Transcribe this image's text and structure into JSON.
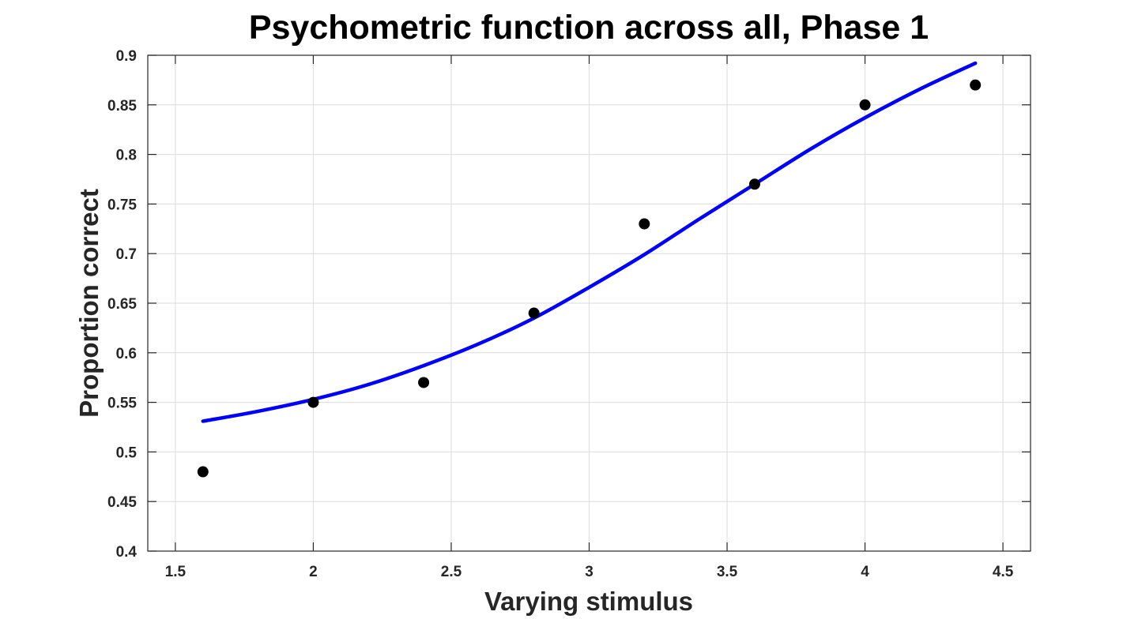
{
  "chart_data": {
    "type": "scatter",
    "title": "Psychometric function across all, Phase 1",
    "xlabel": "Varying stimulus",
    "ylabel": "Proportion correct",
    "xlim": [
      1.4,
      4.6
    ],
    "ylim": [
      0.4,
      0.9
    ],
    "x_ticks": [
      1.5,
      2,
      2.5,
      3,
      3.5,
      4,
      4.5
    ],
    "x_tick_labels": [
      "1.5",
      "2",
      "2.5",
      "3",
      "3.5",
      "4",
      "4.5"
    ],
    "y_ticks": [
      0.4,
      0.45,
      0.5,
      0.55,
      0.6,
      0.65,
      0.7,
      0.75,
      0.8,
      0.85,
      0.9
    ],
    "y_tick_labels": [
      "0.4",
      "0.45",
      "0.5",
      "0.55",
      "0.6",
      "0.65",
      "0.7",
      "0.75",
      "0.8",
      "0.85",
      "0.9"
    ],
    "grid": true,
    "series": [
      {
        "type": "scatter",
        "color": "#000000",
        "x": [
          1.6,
          2.0,
          2.4,
          2.8,
          3.2,
          3.6,
          4.0,
          4.4
        ],
        "y": [
          0.48,
          0.55,
          0.57,
          0.64,
          0.73,
          0.77,
          0.85,
          0.87
        ]
      },
      {
        "type": "line",
        "color": "#0000ff",
        "x": [
          1.6,
          1.8,
          2.0,
          2.2,
          2.4,
          2.6,
          2.8,
          3.0,
          3.2,
          3.4,
          3.6,
          3.8,
          4.0,
          4.2,
          4.4
        ],
        "y": [
          0.531,
          0.541,
          0.553,
          0.568,
          0.587,
          0.609,
          0.635,
          0.666,
          0.699,
          0.735,
          0.77,
          0.805,
          0.837,
          0.866,
          0.892
        ]
      }
    ]
  }
}
